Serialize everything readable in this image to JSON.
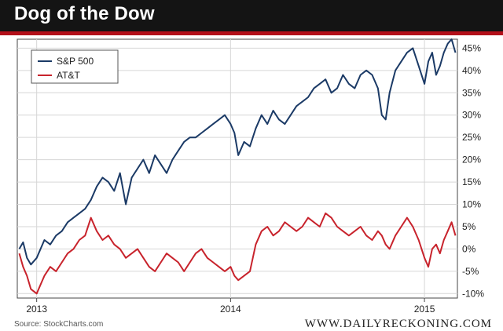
{
  "header": {
    "title": "Dog of the Dow"
  },
  "footer": {
    "source": "Source: StockCharts.com",
    "brand": "WWW.DAILYRECKONING.COM"
  },
  "colors": {
    "sp500": "#1b3a66",
    "att": "#c8232c",
    "header_bg": "#141414",
    "accent": "#b3101a"
  },
  "chart_data": {
    "type": "line",
    "title": "Dog of the Dow",
    "xlabel": "",
    "ylabel": "",
    "x_tick_labels": [
      "2013",
      "2014",
      "2015"
    ],
    "y_tick_labels": [
      "45%",
      "40%",
      "35%",
      "30%",
      "25%",
      "20%",
      "15%",
      "10%",
      "5%",
      "0%",
      "-5%",
      "-10%"
    ],
    "ylim": [
      -11,
      47
    ],
    "xlim": [
      2012.9,
      2015.17
    ],
    "grid": true,
    "legend": "top-left",
    "series": [
      {
        "name": "S&P 500",
        "x": [
          2012.91,
          2012.93,
          2012.95,
          2012.97,
          2013.0,
          2013.02,
          2013.04,
          2013.07,
          2013.1,
          2013.13,
          2013.16,
          2013.19,
          2013.22,
          2013.25,
          2013.28,
          2013.31,
          2013.34,
          2013.37,
          2013.4,
          2013.43,
          2013.46,
          2013.49,
          2013.52,
          2013.55,
          2013.58,
          2013.61,
          2013.64,
          2013.67,
          2013.7,
          2013.73,
          2013.76,
          2013.79,
          2013.82,
          2013.85,
          2013.88,
          2013.91,
          2013.94,
          2013.97,
          2014.0,
          2014.02,
          2014.04,
          2014.07,
          2014.1,
          2014.13,
          2014.16,
          2014.19,
          2014.22,
          2014.25,
          2014.28,
          2014.31,
          2014.34,
          2014.37,
          2014.4,
          2014.43,
          2014.46,
          2014.49,
          2014.52,
          2014.55,
          2014.58,
          2014.61,
          2014.64,
          2014.67,
          2014.7,
          2014.73,
          2014.76,
          2014.78,
          2014.8,
          2014.82,
          2014.85,
          2014.88,
          2014.91,
          2014.94,
          2014.97,
          2015.0,
          2015.02,
          2015.04,
          2015.06,
          2015.08,
          2015.1,
          2015.12,
          2015.14,
          2015.16
        ],
        "values": [
          0,
          1.5,
          -2,
          -3.5,
          -2,
          0,
          2,
          1,
          3,
          4,
          6,
          7,
          8,
          9,
          11,
          14,
          16,
          15,
          13,
          17,
          10,
          16,
          18,
          20,
          17,
          21,
          19,
          17,
          20,
          22,
          24,
          25,
          25,
          26,
          27,
          28,
          29,
          30,
          28,
          26,
          21,
          24,
          23,
          27,
          30,
          28,
          31,
          29,
          28,
          30,
          32,
          33,
          34,
          36,
          37,
          38,
          35,
          36,
          39,
          37,
          36,
          39,
          40,
          39,
          36,
          30,
          29,
          35,
          40,
          42,
          44,
          45,
          41,
          37,
          42,
          44,
          39,
          41,
          44,
          46,
          47,
          44
        ]
      },
      {
        "name": "AT&T",
        "x": [
          2012.91,
          2012.93,
          2012.95,
          2012.97,
          2013.0,
          2013.02,
          2013.04,
          2013.07,
          2013.1,
          2013.13,
          2013.16,
          2013.19,
          2013.22,
          2013.25,
          2013.28,
          2013.31,
          2013.34,
          2013.37,
          2013.4,
          2013.43,
          2013.46,
          2013.49,
          2013.52,
          2013.55,
          2013.58,
          2013.61,
          2013.64,
          2013.67,
          2013.7,
          2013.73,
          2013.76,
          2013.79,
          2013.82,
          2013.85,
          2013.88,
          2013.91,
          2013.94,
          2013.97,
          2014.0,
          2014.02,
          2014.04,
          2014.07,
          2014.1,
          2014.13,
          2014.16,
          2014.19,
          2014.22,
          2014.25,
          2014.28,
          2014.31,
          2014.34,
          2014.37,
          2014.4,
          2014.43,
          2014.46,
          2014.49,
          2014.52,
          2014.55,
          2014.58,
          2014.61,
          2014.64,
          2014.67,
          2014.7,
          2014.73,
          2014.76,
          2014.78,
          2014.8,
          2014.82,
          2014.85,
          2014.88,
          2014.91,
          2014.94,
          2014.97,
          2015.0,
          2015.02,
          2015.04,
          2015.06,
          2015.08,
          2015.1,
          2015.12,
          2015.14,
          2015.16
        ],
        "values": [
          -1,
          -4,
          -6,
          -9,
          -10,
          -8,
          -6,
          -4,
          -5,
          -3,
          -1,
          0,
          2,
          3,
          7,
          4,
          2,
          3,
          1,
          0,
          -2,
          -1,
          0,
          -2,
          -4,
          -5,
          -3,
          -1,
          -2,
          -3,
          -5,
          -3,
          -1,
          0,
          -2,
          -3,
          -4,
          -5,
          -4,
          -6,
          -7,
          -6,
          -5,
          1,
          4,
          5,
          3,
          4,
          6,
          5,
          4,
          5,
          7,
          6,
          5,
          8,
          7,
          5,
          4,
          3,
          4,
          5,
          3,
          2,
          4,
          3,
          1,
          0,
          3,
          5,
          7,
          5,
          2,
          -2,
          -4,
          0,
          1,
          -1,
          2,
          4,
          6,
          3
        ]
      }
    ]
  }
}
